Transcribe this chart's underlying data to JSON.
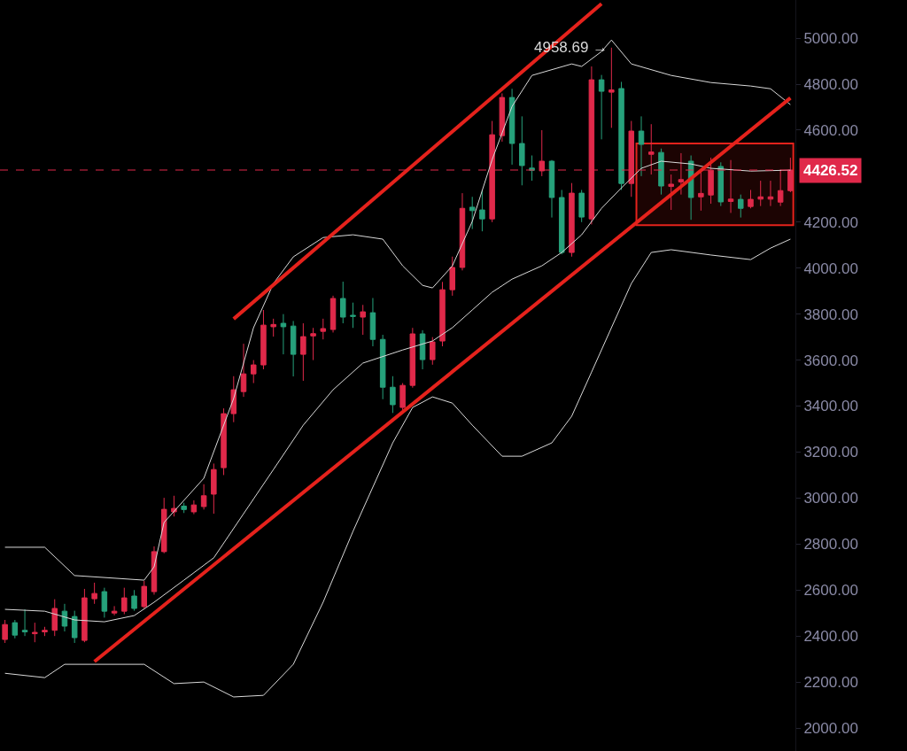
{
  "chart_data": {
    "type": "candlestick",
    "categories": [
      null,
      null,
      null,
      null,
      null,
      null,
      null,
      null,
      null,
      null,
      null,
      null,
      null,
      null,
      null,
      null,
      null,
      null,
      null,
      null,
      null,
      null,
      null,
      null,
      null,
      null,
      null,
      null,
      null,
      null,
      null,
      null,
      null,
      null,
      null,
      null,
      null,
      null,
      null,
      null,
      null,
      null,
      null,
      null,
      null,
      null,
      null,
      null,
      null,
      null,
      null,
      null,
      null,
      null,
      null,
      null,
      null,
      null,
      null,
      null,
      null,
      null,
      null,
      null,
      null,
      null,
      null,
      null,
      null,
      null,
      null,
      null,
      null,
      null,
      null,
      null,
      null,
      null,
      null,
      null
    ],
    "ohlc": [
      [
        2385,
        2470,
        2370,
        2450
      ],
      [
        2458,
        2470,
        2390,
        2404
      ],
      [
        2425,
        2516,
        2400,
        2418
      ],
      [
        2410,
        2458,
        2373,
        2416
      ],
      [
        2418,
        2440,
        2400,
        2425
      ],
      [
        2425,
        2560,
        2400,
        2520
      ],
      [
        2508,
        2540,
        2420,
        2443
      ],
      [
        2485,
        2510,
        2370,
        2393
      ],
      [
        2381,
        2605,
        2373,
        2566
      ],
      [
        2562,
        2632,
        2540,
        2585
      ],
      [
        2593,
        2610,
        2480,
        2508
      ],
      [
        2500,
        2530,
        2490,
        2508
      ],
      [
        2508,
        2610,
        2495,
        2566
      ],
      [
        2574,
        2600,
        2510,
        2520
      ],
      [
        2528,
        2640,
        2520,
        2616
      ],
      [
        2593,
        2790,
        2580,
        2767
      ],
      [
        2767,
        3001,
        2760,
        2951
      ],
      [
        2940,
        3010,
        2920,
        2955
      ],
      [
        2965,
        2980,
        2935,
        2950
      ],
      [
        2940,
        2990,
        2930,
        2970
      ],
      [
        2963,
        3060,
        2950,
        3010
      ],
      [
        3017,
        3150,
        2932,
        3124
      ],
      [
        3132,
        3390,
        3100,
        3367
      ],
      [
        3367,
        3530,
        3330,
        3471
      ],
      [
        3463,
        3671,
        3440,
        3540
      ],
      [
        3540,
        3600,
        3500,
        3579
      ],
      [
        3579,
        3818,
        3560,
        3752
      ],
      [
        3745,
        3780,
        3702,
        3755
      ],
      [
        3760,
        3800,
        3625,
        3745
      ],
      [
        3748,
        3770,
        3529,
        3625
      ],
      [
        3625,
        3760,
        3510,
        3702
      ],
      [
        3705,
        3740,
        3600,
        3715
      ],
      [
        3725,
        3780,
        3690,
        3737
      ],
      [
        3733,
        3880,
        3720,
        3868
      ],
      [
        3868,
        3941,
        3760,
        3787
      ],
      [
        3795,
        3850,
        3740,
        3790
      ],
      [
        3787,
        3840,
        3710,
        3810
      ],
      [
        3806,
        3870,
        3660,
        3690
      ],
      [
        3690,
        3710,
        3430,
        3482
      ],
      [
        3482,
        3530,
        3370,
        3406
      ],
      [
        3394,
        3500,
        3380,
        3490
      ],
      [
        3490,
        3740,
        3480,
        3714
      ],
      [
        3714,
        3730,
        3560,
        3602
      ],
      [
        3602,
        3700,
        3580,
        3679
      ],
      [
        3683,
        3940,
        3660,
        3906
      ],
      [
        3906,
        4050,
        3880,
        4003
      ],
      [
        4003,
        4326,
        3990,
        4260
      ],
      [
        4265,
        4310,
        4170,
        4250
      ],
      [
        4253,
        4340,
        4160,
        4214
      ],
      [
        4214,
        4640,
        4200,
        4580
      ],
      [
        4576,
        4760,
        4550,
        4742
      ],
      [
        4742,
        4780,
        4450,
        4542
      ],
      [
        4542,
        4660,
        4360,
        4446
      ],
      [
        4435,
        4490,
        4380,
        4425
      ],
      [
        4423,
        4600,
        4400,
        4465
      ],
      [
        4465,
        4470,
        4220,
        4307
      ],
      [
        4307,
        4340,
        4060,
        4068
      ],
      [
        4068,
        4370,
        4050,
        4326
      ],
      [
        4326,
        4340,
        4200,
        4222
      ],
      [
        4214,
        4877,
        4190,
        4819
      ],
      [
        4819,
        4840,
        4560,
        4769
      ],
      [
        4765,
        4958.69,
        4610,
        4775
      ],
      [
        4781,
        4810,
        4340,
        4368
      ],
      [
        4368,
        4640,
        4310,
        4596
      ],
      [
        4596,
        4660,
        4400,
        4538
      ],
      [
        4495,
        4626,
        4407,
        4505
      ],
      [
        4503,
        4520,
        4320,
        4357
      ],
      [
        4355,
        4407,
        4253,
        4365
      ],
      [
        4375,
        4500,
        4320,
        4385
      ],
      [
        4465,
        4490,
        4210,
        4307
      ],
      [
        4310,
        4430,
        4250,
        4325
      ],
      [
        4318,
        4480,
        4280,
        4426
      ],
      [
        4442,
        4460,
        4270,
        4288
      ],
      [
        4290,
        4470,
        4240,
        4300
      ],
      [
        4299,
        4320,
        4220,
        4260
      ],
      [
        4268,
        4340,
        4260,
        4299
      ],
      [
        4300,
        4380,
        4270,
        4310
      ],
      [
        4300,
        4380,
        4270,
        4310
      ],
      [
        4287,
        4430,
        4270,
        4337
      ],
      [
        4337,
        4480,
        4330,
        4426.52
      ]
    ],
    "colors": [
      "#e0294a",
      "#26a17b",
      "#26a17b",
      "#e0294a",
      "#e0294a",
      "#e0294a",
      "#26a17b",
      "#26a17b",
      "#e0294a",
      "#e0294a",
      "#26a17b",
      "#e0294a",
      "#e0294a",
      "#26a17b",
      "#e0294a",
      "#e0294a",
      "#e0294a",
      "#e0294a",
      "#26a17b",
      "#e0294a",
      "#e0294a",
      "#e0294a",
      "#e0294a",
      "#e0294a",
      "#e0294a",
      "#e0294a",
      "#e0294a",
      "#e0294a",
      "#26a17b",
      "#26a17b",
      "#e0294a",
      "#e0294a",
      "#e0294a",
      "#e0294a",
      "#26a17b",
      "#26a17b",
      "#e0294a",
      "#26a17b",
      "#26a17b",
      "#26a17b",
      "#e0294a",
      "#e0294a",
      "#26a17b",
      "#e0294a",
      "#e0294a",
      "#e0294a",
      "#e0294a",
      "#26a17b",
      "#26a17b",
      "#e0294a",
      "#e0294a",
      "#26a17b",
      "#26a17b",
      "#26a17b",
      "#e0294a",
      "#26a17b",
      "#26a17b",
      "#e0294a",
      "#26a17b",
      "#e0294a",
      "#26a17b",
      "#e0294a",
      "#26a17b",
      "#e0294a",
      "#26a17b",
      "#e0294a",
      "#26a17b",
      "#e0294a",
      "#e0294a",
      "#26a17b",
      "#e0294a",
      "#e0294a",
      "#26a17b",
      "#e0294a",
      "#26a17b",
      "#e0294a",
      "#e0294a",
      "#e0294a",
      "#e0294a",
      "#e0294a"
    ],
    "series": [
      {
        "type": "line",
        "color": "#d9d9d9",
        "values": [
          2786,
          null,
          null,
          null,
          2786,
          null,
          null,
          2663,
          null,
          null,
          null,
          null,
          null,
          null,
          2643,
          2701,
          2894,
          null,
          null,
          null,
          3086,
          null,
          null,
          3433,
          null,
          3741,
          null,
          3933,
          null,
          4049,
          null,
          null,
          4133,
          null,
          null,
          4145,
          null,
          null,
          4126,
          null,
          4010,
          null,
          3925,
          3914,
          null,
          4010,
          null,
          4203,
          null,
          4472,
          null,
          4703,
          null,
          4838,
          null,
          null,
          null,
          4888,
          4877,
          null,
          4942,
          4992,
          null,
          4888,
          null,
          null,
          null,
          4838,
          null,
          null,
          null,
          4807,
          null,
          null,
          null,
          4792,
          null,
          4780,
          null,
          4711
        ]
      },
      {
        "type": "line",
        "color": "#d9d9d9",
        "values": [
          2516,
          null,
          null,
          null,
          2508,
          null,
          null,
          2470,
          null,
          null,
          2462,
          null,
          null,
          2489,
          null,
          2547,
          null,
          null,
          2643,
          null,
          null,
          2740,
          null,
          null,
          2932,
          null,
          null,
          3124,
          null,
          null,
          3317,
          null,
          null,
          3471,
          null,
          null,
          3587,
          null,
          null,
          null,
          3644,
          null,
          null,
          3683,
          null,
          3741,
          null,
          3818,
          null,
          3895,
          null,
          3952,
          null,
          null,
          4010,
          null,
          4068,
          null,
          4145,
          null,
          4260,
          null,
          4349,
          null,
          4434,
          null,
          4465,
          null,
          null,
          4453,
          null,
          4434,
          null,
          null,
          null,
          4422,
          null,
          null,
          null,
          4426
        ]
      },
      {
        "type": "line",
        "color": "#d9d9d9",
        "values": [
          2238,
          null,
          null,
          null,
          2219,
          null,
          2277,
          null,
          null,
          null,
          null,
          null,
          null,
          null,
          2277,
          null,
          null,
          2193,
          null,
          null,
          2200,
          null,
          null,
          2135,
          null,
          null,
          2142,
          null,
          null,
          2277,
          null,
          null,
          2547,
          null,
          null,
          2855,
          null,
          null,
          null,
          3240,
          null,
          3394,
          null,
          3440,
          null,
          3413,
          null,
          3317,
          null,
          null,
          3182,
          null,
          3182,
          null,
          null,
          3240,
          null,
          3356,
          null,
          3548,
          null,
          3741,
          null,
          3933,
          null,
          4068,
          null,
          4080,
          null,
          null,
          null,
          4057,
          null,
          null,
          null,
          4037,
          null,
          4087,
          null,
          4126
        ]
      },
      {
        "type": "line",
        "color": "#e5221c",
        "values": [
          null,
          null,
          null,
          null,
          null,
          null,
          null,
          null,
          null,
          null,
          null,
          null,
          null,
          null,
          null,
          null,
          null,
          null,
          null,
          null,
          null,
          null,
          null,
          3779,
          null,
          null,
          null,
          null,
          null,
          null,
          null,
          null,
          null,
          null,
          null,
          null,
          null,
          null,
          null,
          null,
          null,
          null,
          null,
          null,
          null,
          null,
          null,
          null,
          null,
          null,
          null,
          null,
          null,
          null,
          null,
          null,
          null,
          null,
          null,
          null,
          5150,
          null,
          null,
          null,
          null,
          null,
          null,
          null,
          null,
          null,
          null,
          null,
          null,
          null,
          null,
          null,
          null,
          null,
          null,
          null
        ]
      },
      {
        "type": "line",
        "color": "#e5221c",
        "values": [
          null,
          null,
          null,
          null,
          null,
          null,
          null,
          null,
          null,
          2289,
          null,
          null,
          null,
          null,
          null,
          null,
          null,
          null,
          null,
          null,
          null,
          null,
          null,
          null,
          null,
          null,
          null,
          null,
          null,
          null,
          null,
          null,
          null,
          null,
          null,
          null,
          null,
          null,
          null,
          null,
          null,
          null,
          null,
          null,
          null,
          null,
          null,
          null,
          null,
          null,
          null,
          null,
          null,
          null,
          null,
          null,
          null,
          null,
          null,
          null,
          null,
          null,
          null,
          null,
          null,
          null,
          null,
          null,
          null,
          null,
          null,
          null,
          null,
          null,
          null,
          null,
          null,
          null,
          null,
          4740
        ]
      }
    ],
    "bands": [
      {
        "axis": "y",
        "from": 4191,
        "to": 4538,
        "color": "#e5221c"
      }
    ],
    "ylim": [
      1900,
      5166
    ],
    "yticks": [
      {
        "value": 2000,
        "label": "2000.00"
      },
      {
        "value": 2200,
        "label": "2200.00"
      },
      {
        "value": 2400,
        "label": "2400.00"
      },
      {
        "value": 2600,
        "label": "2600.00"
      },
      {
        "value": 2800,
        "label": "2800.00"
      },
      {
        "value": 3000,
        "label": "3000.00"
      },
      {
        "value": 3200,
        "label": "3200.00"
      },
      {
        "value": 3400,
        "label": "3400.00"
      },
      {
        "value": 3600,
        "label": "3600.00"
      },
      {
        "value": 3800,
        "label": "3800.00"
      },
      {
        "value": 4000,
        "label": "4000.00"
      },
      {
        "value": 4200,
        "label": "4200.00"
      },
      {
        "value": 4600,
        "label": "4600.00"
      },
      {
        "value": 4800,
        "label": "4800.00"
      },
      {
        "value": 5000,
        "label": "5000.00"
      }
    ],
    "ref_lines": [
      {
        "axis": "y",
        "value": 4426.52,
        "label": "4426.52",
        "color": "#e0294a",
        "line_style": "dashed"
      }
    ],
    "annotations": [
      "4958.69 →"
    ],
    "tick_labels": "y"
  }
}
